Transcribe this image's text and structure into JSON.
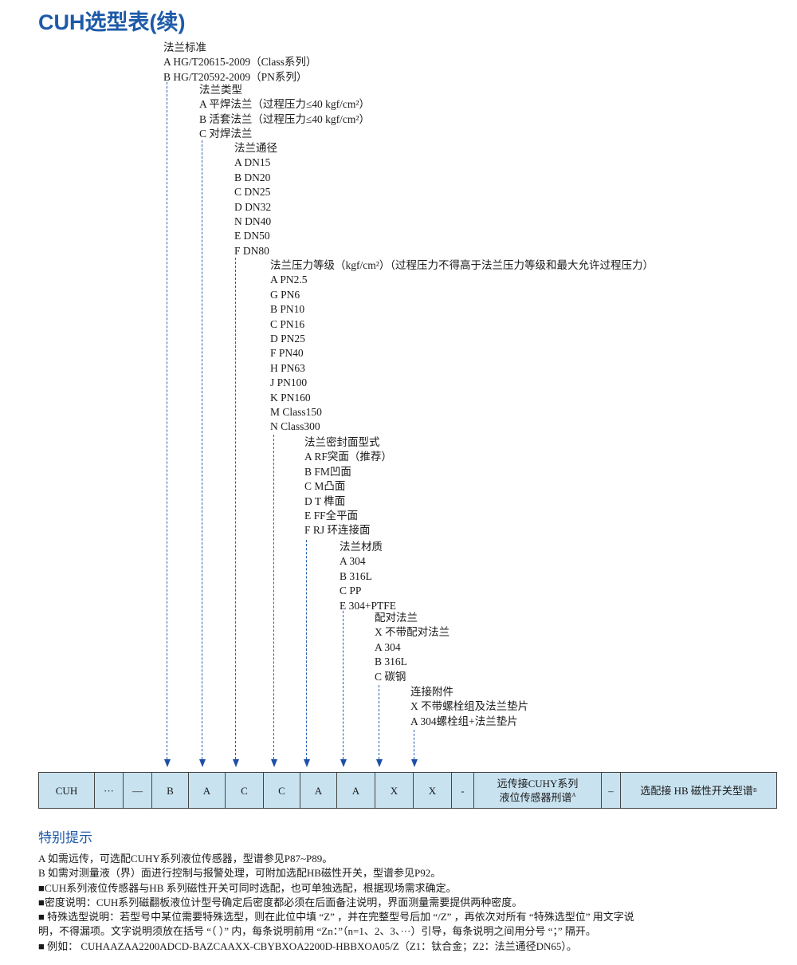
{
  "title": "CUH选型表(续)",
  "groups": [
    {
      "header": "法兰标准",
      "items": [
        "A  HG/T20615-2009（Class系列）",
        "B  HG/T20592-2009（PN系列）"
      ]
    },
    {
      "header": "法兰类型",
      "items": [
        "A  平焊法兰（过程压力≤40 kgf/cm²）",
        "B  活套法兰（过程压力≤40 kgf/cm²）",
        "C  对焊法兰"
      ]
    },
    {
      "header": "法兰通径",
      "items": [
        "A  DN15",
        "B  DN20",
        "C  DN25",
        "D  DN32",
        "N  DN40",
        "E  DN50",
        "F  DN80"
      ]
    },
    {
      "header": "法兰压力等级（kgf/cm²）（过程压力不得高于法兰压力等级和最大允许过程压力）",
      "items": [
        "A  PN2.5",
        "G  PN6",
        "B  PN10",
        "C  PN16",
        "D  PN25",
        "F  PN40",
        "H PN63",
        "J  PN100",
        "K PN160",
        "M Class150",
        "N Class300"
      ]
    },
    {
      "header": "法兰密封面型式",
      "items": [
        "A  RF突面（推荐）",
        "B  FM凹面",
        "C  M凸面",
        "D  T 榫面",
        "E  FF全平面",
        "F  RJ 环连接面"
      ]
    },
    {
      "header": "法兰材质",
      "items": [
        "A  304",
        "B  316L",
        "C  PP",
        "E  304+PTFE"
      ]
    },
    {
      "header": "配对法兰",
      "items": [
        "X  不带配对法兰",
        "A  304",
        "B  316L",
        "C  碳钢"
      ]
    },
    {
      "header": "连接附件",
      "items": [
        "X  不带螺栓组及法兰垫片",
        "A  304螺栓组+法兰垫片"
      ]
    }
  ],
  "table": {
    "cells": [
      "CUH",
      "···",
      "—",
      "B",
      "A",
      "C",
      "C",
      "A",
      "A",
      "X",
      "X",
      "-"
    ],
    "remote_line1": "远传接CUHY系列",
    "remote_line2": "液位传感器刑谱",
    "remote_sup": "A",
    "dash2": "–",
    "switch": "选配接 HB 磁性开关型谱",
    "switch_sup": "B"
  },
  "tips_title": "特别提示",
  "notes": [
    "A  如需远传，可选配CUHY系列液位传感器，型谱参见P87~P89。",
    "B  如需对测量液（界）面进行控制与报警处理，可附加选配HB磁性开关，型谱参见P92。",
    "■CUH系列液位传感器与HB 系列磁性开关可同时选配，也可单独选配，根据现场需求确定。",
    "■密度说明：CUH系列磁翻板液位计型号确定后密度都必须在后面备注说明，界面测量需要提供两种密度。",
    "■ 特殊选型说明：若型号中某位需要特殊选型，则在此位中填 “Z” ，并在完整型号后加 “/Z” ，再依次对所有 “特殊选型位” 用文字说",
    "明，不得漏项。文字说明须放在括号 “（ ）” 内，每条说明前用 “Zn：”（n=1、2、3、···）引导，每条说明之间用分号 “；” 隔开。",
    "■ 例如： CUHAAZAA2200ADCD-BAZCAAXX-CBYBXOA2200D-HBBXOA05/Z（Z1：钛合金；Z2：法兰通径DN65）。"
  ],
  "colors": {
    "accent": "#1e5aa8",
    "table_bg": "#c8e2f0",
    "arrow": "#1e4fa8"
  }
}
